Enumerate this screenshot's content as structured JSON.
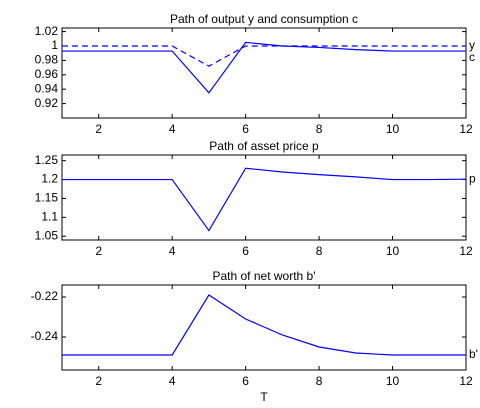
{
  "chart_data": [
    {
      "type": "line",
      "title": "Path of output y and consumption c",
      "x": [
        1,
        2,
        3,
        4,
        5,
        6,
        7,
        8,
        9,
        10,
        11,
        12
      ],
      "series": [
        {
          "name": "y",
          "color": "#0000ff",
          "dashed": true,
          "values": [
            1,
            1,
            1,
            1,
            0.972,
            1,
            1,
            1,
            1,
            1,
            1,
            1
          ]
        },
        {
          "name": "c",
          "color": "#0000ff",
          "dashed": false,
          "values": [
            0.993,
            0.993,
            0.993,
            0.993,
            0.935,
            1.005,
            1.0,
            0.998,
            0.995,
            0.993,
            0.993,
            0.993
          ]
        }
      ],
      "xlim": [
        1,
        12
      ],
      "xticks": [
        2,
        4,
        6,
        8,
        10,
        12
      ],
      "ylim": [
        0.9,
        1.025
      ],
      "yticks": [
        0.92,
        0.94,
        0.96,
        0.98,
        1,
        1.02
      ]
    },
    {
      "type": "line",
      "title": "Path of asset price p",
      "x": [
        1,
        2,
        3,
        4,
        5,
        6,
        7,
        8,
        9,
        10,
        11,
        12
      ],
      "series": [
        {
          "name": "p",
          "color": "#0000ff",
          "dashed": false,
          "values": [
            1.2,
            1.2,
            1.2,
            1.2,
            1.065,
            1.23,
            1.22,
            1.213,
            1.207,
            1.2,
            1.2,
            1.201
          ]
        }
      ],
      "xlim": [
        1,
        12
      ],
      "xticks": [
        2,
        4,
        6,
        8,
        10,
        12
      ],
      "ylim": [
        1.04,
        1.265
      ],
      "yticks": [
        1.05,
        1.1,
        1.15,
        1.2,
        1.25
      ]
    },
    {
      "type": "line",
      "title": "Path of net worth b'",
      "xlabel": "T",
      "x": [
        1,
        2,
        3,
        4,
        5,
        6,
        7,
        8,
        9,
        10,
        11,
        12
      ],
      "series": [
        {
          "name": "b'",
          "color": "#0000ff",
          "dashed": false,
          "values": [
            -0.249,
            -0.249,
            -0.249,
            -0.249,
            -0.219,
            -0.231,
            -0.239,
            -0.245,
            -0.248,
            -0.249,
            -0.249,
            -0.249
          ]
        }
      ],
      "xlim": [
        1,
        12
      ],
      "xticks": [
        2,
        4,
        6,
        8,
        10,
        12
      ],
      "ylim": [
        -0.2565,
        -0.214
      ],
      "yticks": [
        -0.24,
        -0.22
      ]
    }
  ]
}
